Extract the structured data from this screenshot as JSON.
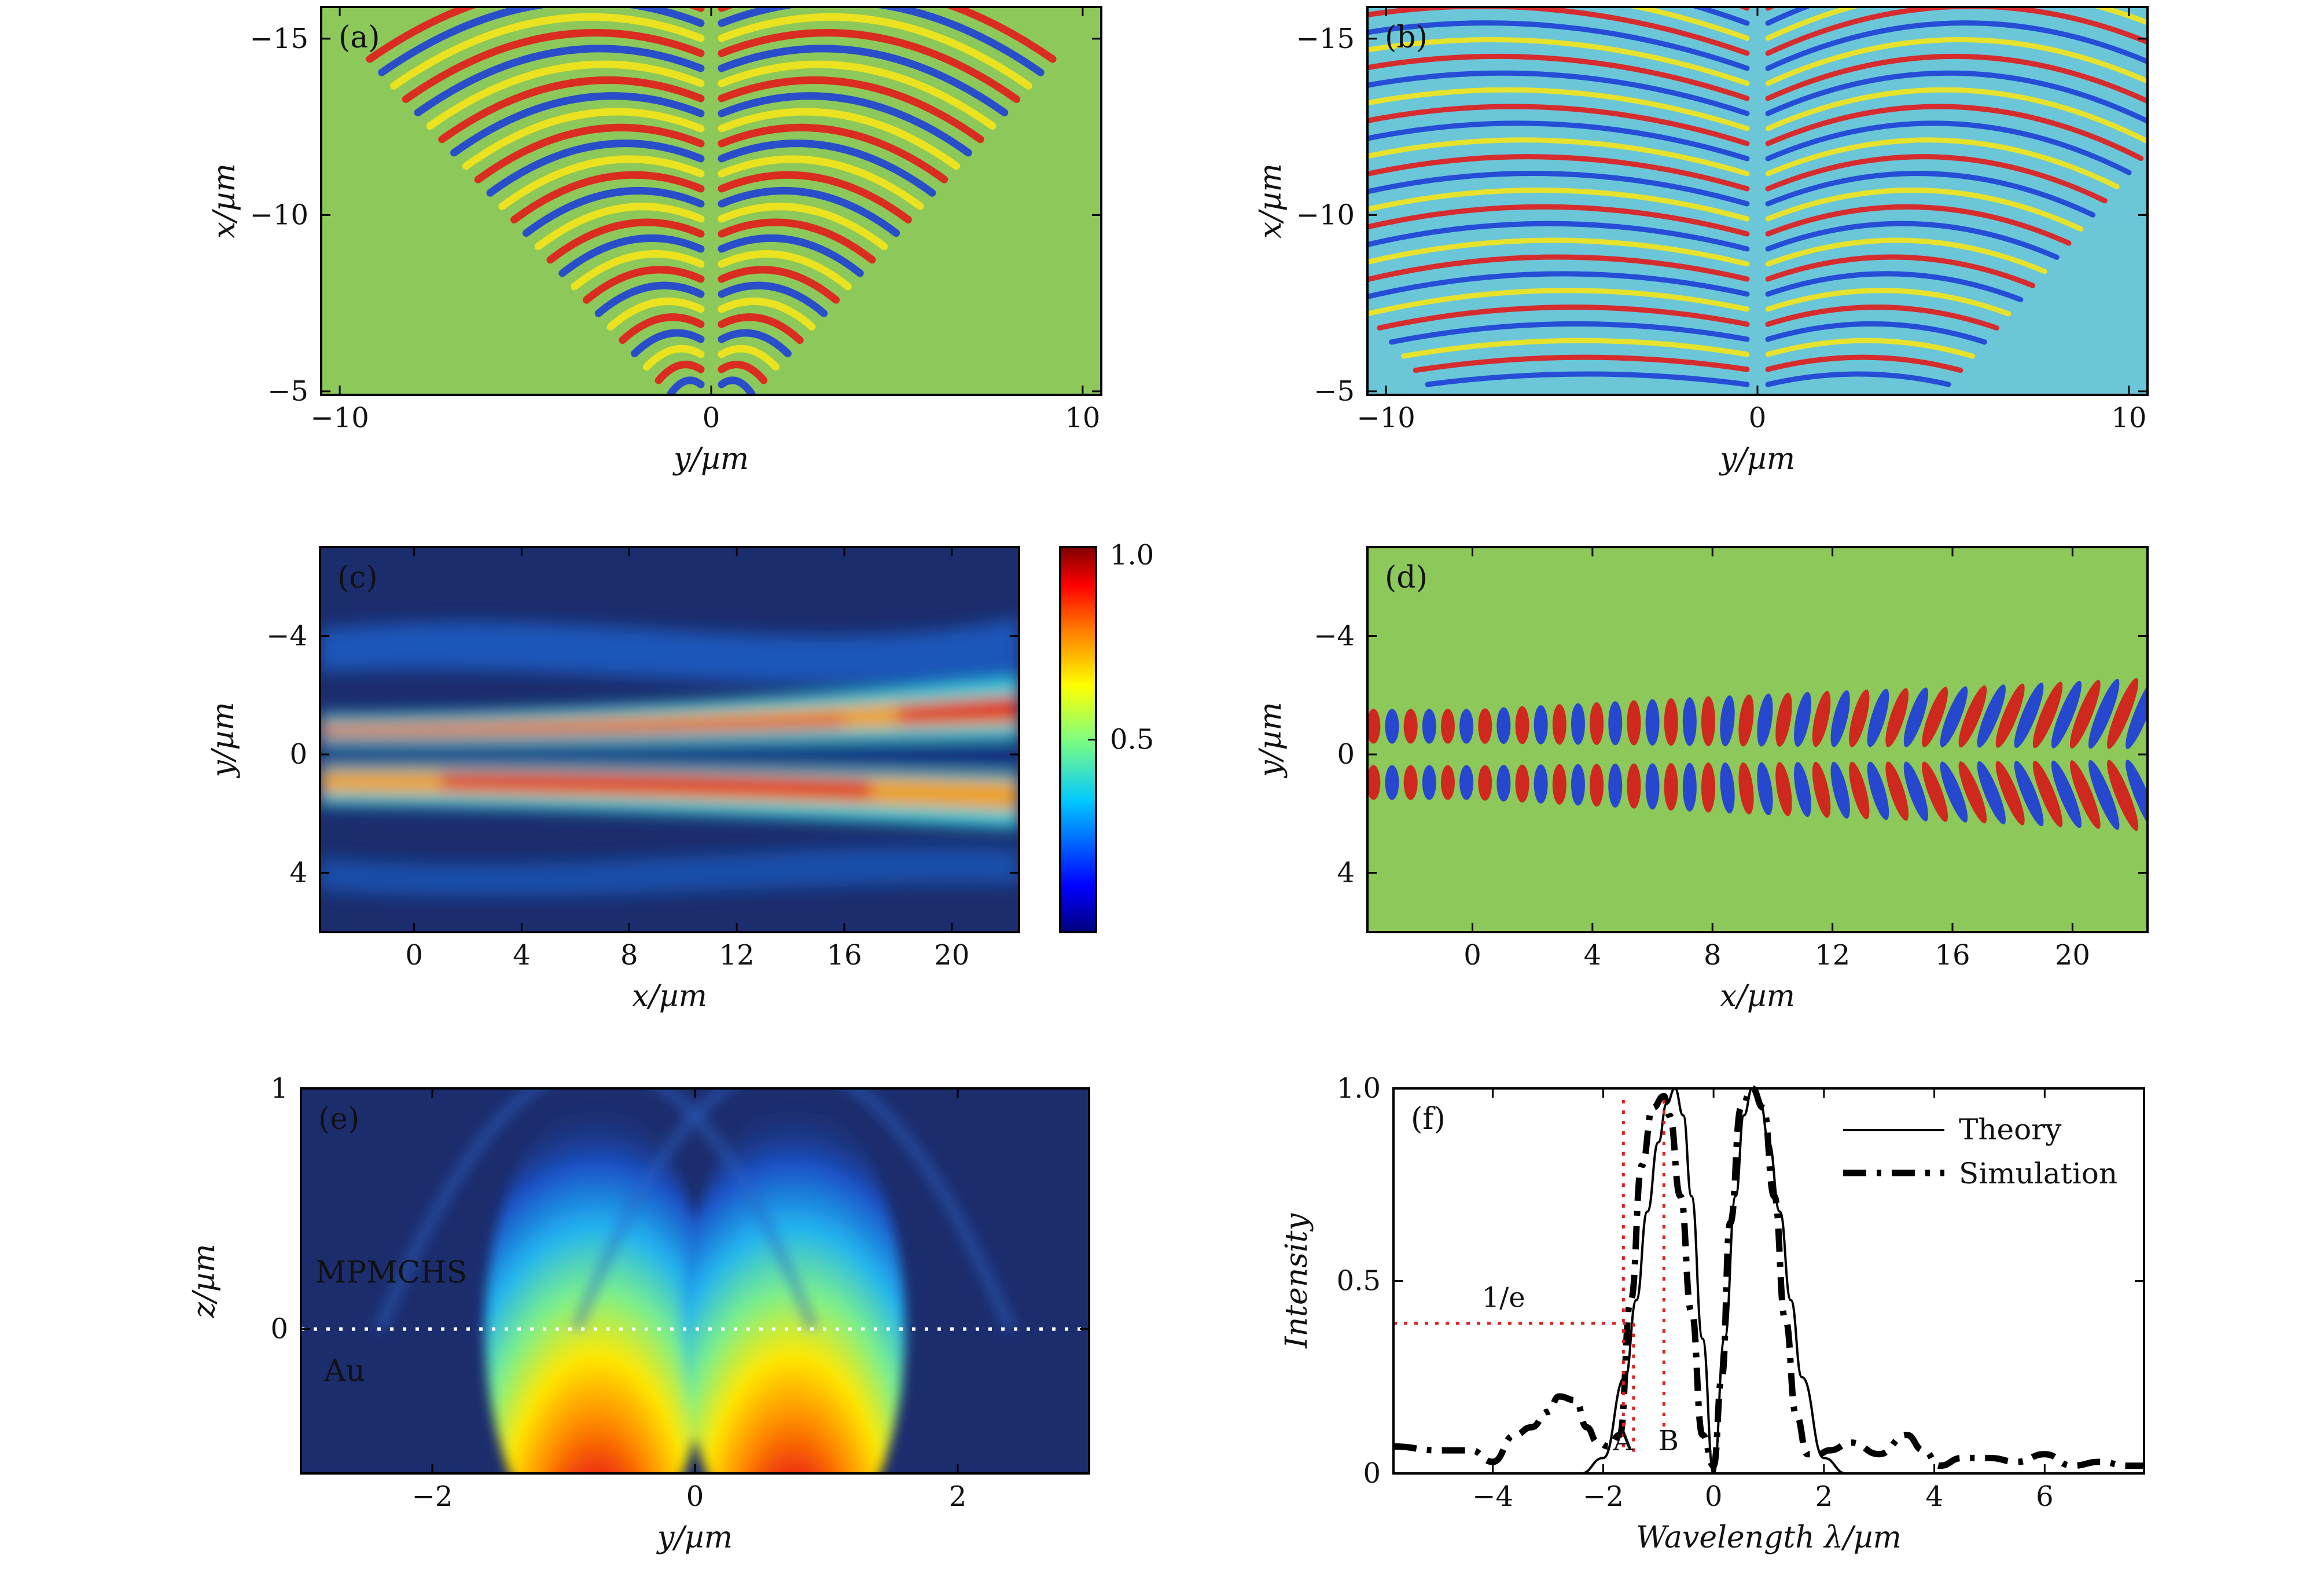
{
  "colors": {
    "green_bg": "#8cc85a",
    "cyan_bg": "#6bc6d8",
    "navy_bg": "#1c2d6e",
    "red_line": "#e02020"
  },
  "chart_data": [
    {
      "panel": "a",
      "label": "(a)",
      "type": "heatmap",
      "xlabel": "y/µm",
      "ylabel": "x/µm",
      "xlim": [
        -10.5,
        10.5
      ],
      "ylim": [
        -15.9,
        -4.9
      ],
      "xticks": [
        {
          "v": -10,
          "t": "−10"
        },
        {
          "v": 0,
          "t": "0"
        },
        {
          "v": 10,
          "t": "10"
        }
      ],
      "yticks": [
        {
          "v": -15,
          "t": "−15"
        },
        {
          "v": -10,
          "t": "−10"
        },
        {
          "v": -5,
          "t": "−5"
        }
      ],
      "y_inverted": true
    },
    {
      "panel": "b",
      "label": "(b)",
      "type": "heatmap",
      "xlabel": "y/µm",
      "ylabel": "x/µm",
      "xlim": [
        -10.5,
        10.5
      ],
      "ylim": [
        -15.9,
        -4.9
      ],
      "xticks": [
        {
          "v": -10,
          "t": "−10"
        },
        {
          "v": 0,
          "t": "0"
        },
        {
          "v": 10,
          "t": "10"
        }
      ],
      "yticks": [
        {
          "v": -15,
          "t": "−15"
        },
        {
          "v": -10,
          "t": "−10"
        },
        {
          "v": -5,
          "t": "−5"
        }
      ],
      "y_inverted": true
    },
    {
      "panel": "c",
      "label": "(c)",
      "type": "heatmap",
      "xlabel": "x/µm",
      "ylabel": "y/µm",
      "xlim": [
        -3.5,
        22.5
      ],
      "ylim": [
        -7,
        6
      ],
      "xticks": [
        {
          "v": 0,
          "t": "0"
        },
        {
          "v": 4,
          "t": "4"
        },
        {
          "v": 8,
          "t": "8"
        },
        {
          "v": 12,
          "t": "12"
        },
        {
          "v": 16,
          "t": "16"
        },
        {
          "v": 20,
          "t": "20"
        }
      ],
      "yticks": [
        {
          "v": -4,
          "t": "−4"
        },
        {
          "v": 0,
          "t": "0"
        },
        {
          "v": 4,
          "t": "4"
        }
      ],
      "y_inverted": true,
      "colorbar": {
        "min": 0,
        "max": 1.0,
        "ticks": [
          {
            "v": 1.0,
            "t": "1.0"
          },
          {
            "v": 0.5,
            "t": "0.5"
          }
        ]
      }
    },
    {
      "panel": "d",
      "label": "(d)",
      "type": "heatmap",
      "xlabel": "x/µm",
      "ylabel": "y/µm",
      "xlim": [
        -3.5,
        22.5
      ],
      "ylim": [
        -7,
        6
      ],
      "xticks": [
        {
          "v": 0,
          "t": "0"
        },
        {
          "v": 4,
          "t": "4"
        },
        {
          "v": 8,
          "t": "8"
        },
        {
          "v": 12,
          "t": "12"
        },
        {
          "v": 16,
          "t": "16"
        },
        {
          "v": 20,
          "t": "20"
        }
      ],
      "yticks": [
        {
          "v": -4,
          "t": "−4"
        },
        {
          "v": 0,
          "t": "0"
        },
        {
          "v": 4,
          "t": "4"
        }
      ],
      "y_inverted": true
    },
    {
      "panel": "e",
      "label": "(e)",
      "type": "heatmap",
      "xlabel": "y/µm",
      "ylabel": "z/µm",
      "xlim": [
        -3,
        3
      ],
      "ylim": [
        -0.6,
        1.0
      ],
      "xticks": [
        {
          "v": -2,
          "t": "−2"
        },
        {
          "v": 0,
          "t": "0"
        },
        {
          "v": 2,
          "t": "2"
        }
      ],
      "yticks": [
        {
          "v": 0,
          "t": "0"
        },
        {
          "v": 1,
          "t": "1"
        }
      ],
      "annotations": {
        "upper": "MPMCHS",
        "lower": "Au"
      },
      "lobe_centers": [
        -0.75,
        0.75
      ]
    },
    {
      "panel": "f",
      "label": "(f)",
      "type": "line",
      "xlabel": "Wavelength λ/µm",
      "ylabel": "Intensity",
      "xlim": [
        -5.8,
        7.8
      ],
      "ylim": [
        0,
        1.0
      ],
      "xticks": [
        {
          "v": -4,
          "t": "−4"
        },
        {
          "v": -2,
          "t": "−2"
        },
        {
          "v": 0,
          "t": "0"
        },
        {
          "v": 2,
          "t": "2"
        },
        {
          "v": 4,
          "t": "4"
        },
        {
          "v": 6,
          "t": "6"
        }
      ],
      "yticks": [
        {
          "v": 0,
          "t": "0"
        },
        {
          "v": 0.5,
          "t": "0.5"
        },
        {
          "v": 1.0,
          "t": "1.0"
        }
      ],
      "legend": {
        "position": "top-right",
        "entries": [
          "Theory",
          "Simulation"
        ]
      },
      "annotations": {
        "one_over_e": "1/e",
        "one_over_e_value": 0.39,
        "A": "A",
        "B": "B",
        "A_x": -1.45,
        "B_x": -0.9
      },
      "series": [
        {
          "name": "Theory",
          "style": "solid",
          "x": [
            -5.8,
            -2.4,
            -2.0,
            -1.6,
            -1.4,
            -1.2,
            -1.0,
            -0.85,
            -0.7,
            -0.55,
            -0.4,
            -0.2,
            0,
            0.2,
            0.4,
            0.55,
            0.7,
            0.85,
            1.0,
            1.2,
            1.4,
            1.6,
            2.0,
            2.4,
            7.8
          ],
          "y": [
            0,
            0,
            0.04,
            0.25,
            0.45,
            0.68,
            0.86,
            0.96,
            1.0,
            0.93,
            0.72,
            0.35,
            0,
            0.35,
            0.72,
            0.93,
            1.0,
            0.96,
            0.86,
            0.68,
            0.45,
            0.25,
            0.04,
            0,
            0
          ]
        },
        {
          "name": "Simulation",
          "style": "dash-dot",
          "x": [
            -5.8,
            -5.0,
            -4.4,
            -4.0,
            -3.6,
            -3.3,
            -3.0,
            -2.8,
            -2.5,
            -2.3,
            -2.1,
            -1.9,
            -1.7,
            -1.5,
            -1.3,
            -1.1,
            -0.9,
            -0.8,
            -0.6,
            -0.4,
            -0.2,
            0,
            0.15,
            0.3,
            0.5,
            0.7,
            0.9,
            1.1,
            1.3,
            1.5,
            1.7,
            1.9,
            2.1,
            2.5,
            3.0,
            3.5,
            3.8,
            4.1,
            4.5,
            5.0,
            5.5,
            6.0,
            6.5,
            7.0,
            7.5,
            7.8
          ],
          "y": [
            0.07,
            0.06,
            0.06,
            0.03,
            0.1,
            0.12,
            0.16,
            0.2,
            0.19,
            0.12,
            0.08,
            0.07,
            0.1,
            0.45,
            0.8,
            0.95,
            0.98,
            0.93,
            0.72,
            0.42,
            0.1,
            0.02,
            0.25,
            0.65,
            0.95,
            1.0,
            0.95,
            0.72,
            0.4,
            0.15,
            0.05,
            0.05,
            0.06,
            0.08,
            0.05,
            0.1,
            0.06,
            0.02,
            0.04,
            0.04,
            0.03,
            0.05,
            0.02,
            0.03,
            0.02,
            0.02
          ]
        }
      ]
    }
  ]
}
